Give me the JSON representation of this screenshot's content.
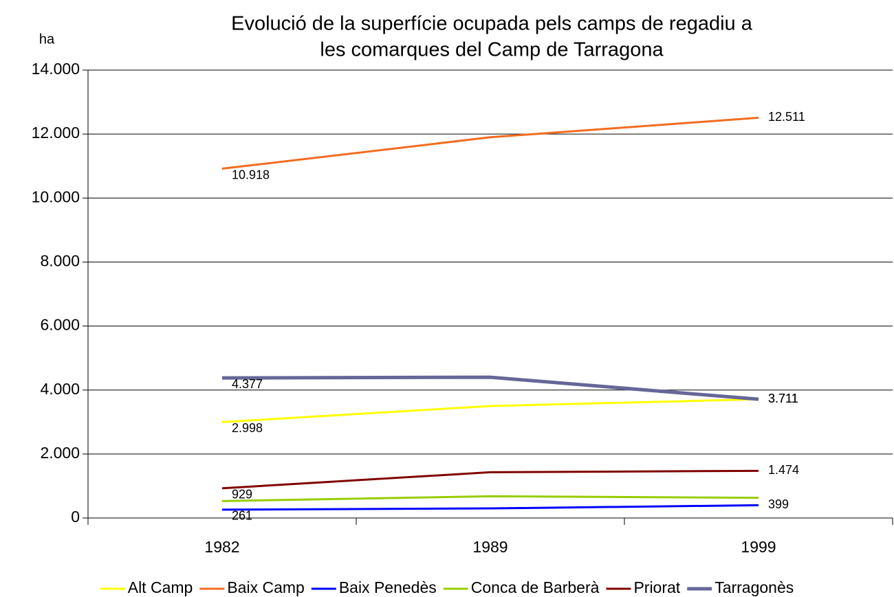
{
  "chart_data": {
    "type": "line",
    "title": [
      "Evolució de la superfície ocupada pels camps de regadiu a",
      "les comarques del Camp de Tarragona"
    ],
    "ylabel": "ha",
    "categories": [
      "1982",
      "1989",
      "1999"
    ],
    "series": [
      {
        "name": "Alt Camp",
        "color": "#ffff00",
        "values": [
          2998,
          3500,
          3711
        ],
        "value_labels": [
          "2.998",
          null,
          "3.711"
        ]
      },
      {
        "name": "Baix Camp",
        "color": "#f26c1f",
        "values": [
          10918,
          11900,
          12511
        ],
        "value_labels": [
          "10.918",
          null,
          "12.511"
        ]
      },
      {
        "name": "Baix Penedès",
        "color": "#0000ff",
        "values": [
          261,
          300,
          399
        ],
        "value_labels": [
          "261",
          null,
          "399"
        ]
      },
      {
        "name": "Conca de Barberà",
        "color": "#99cc00",
        "values": [
          530,
          680,
          630
        ]
      },
      {
        "name": "Priorat",
        "color": "#800000",
        "values": [
          929,
          1430,
          1474
        ],
        "value_labels": [
          "929",
          null,
          "1.474"
        ]
      },
      {
        "name": "Tarragonès",
        "color": "#666699",
        "values": [
          4377,
          4400,
          3711
        ],
        "value_labels": [
          "4.377",
          null,
          "3.711"
        ]
      }
    ],
    "ylim": [
      0,
      14000
    ],
    "yticks": [
      0,
      {
        "value": 2000,
        "label": "2.000"
      },
      {
        "value": 4000,
        "label": "4.000"
      },
      {
        "value": 6000,
        "label": "6.000"
      },
      {
        "value": 8000,
        "label": "8.000"
      },
      {
        "value": 10000,
        "label": "10.000"
      },
      {
        "value": 12000,
        "label": "12.000"
      },
      {
        "value": 14000,
        "label": "14.000"
      }
    ],
    "grid": true,
    "legend": "bottom"
  }
}
